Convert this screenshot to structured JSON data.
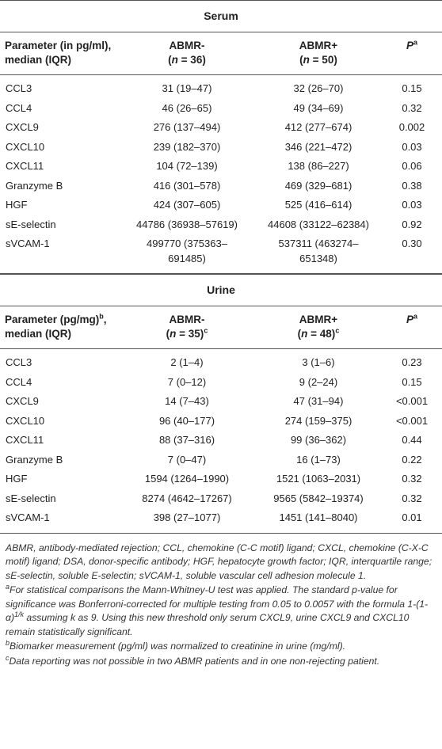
{
  "sections": [
    {
      "title": "Serum",
      "header": [
        [
          [
            {
              "text": "Parameter (in pg/ml),"
            }
          ],
          [
            {
              "text": "median (IQR)"
            }
          ]
        ],
        [
          [
            {
              "text": "ABMR-"
            }
          ],
          [
            {
              "text": "("
            },
            {
              "text": "n",
              "style": "i"
            },
            {
              "text": " = 36)"
            }
          ]
        ],
        [
          [
            {
              "text": "ABMR+"
            }
          ],
          [
            {
              "text": "("
            },
            {
              "text": "n",
              "style": "i"
            },
            {
              "text": " = 50)"
            }
          ]
        ],
        [
          [
            {
              "text": "P",
              "style": "i"
            },
            {
              "text": "a",
              "style": "sup"
            }
          ]
        ]
      ],
      "rows": [
        [
          "CCL3",
          "31 (19–47)",
          "32 (26–70)",
          "0.15"
        ],
        [
          "CCL4",
          "46 (26–65)",
          "49 (34–69)",
          "0.32"
        ],
        [
          "CXCL9",
          "276 (137–494)",
          "412 (277–674)",
          "0.002"
        ],
        [
          "CXCL10",
          "239 (182–370)",
          "346 (221–472)",
          "0.03"
        ],
        [
          "CXCL11",
          "104 (72–139)",
          "138 (86–227)",
          "0.06"
        ],
        [
          "Granzyme B",
          "416 (301–578)",
          "469 (329–681)",
          "0.38"
        ],
        [
          "HGF",
          "424 (307–605)",
          "525 (416–614)",
          "0.03"
        ],
        [
          "sE-selectin",
          "44786 (36938–57619)",
          "44608 (33122–62384)",
          "0.92"
        ],
        [
          "sVCAM-1",
          "499770 (375363–691485)",
          "537311 (463274–651348)",
          "0.30"
        ]
      ]
    },
    {
      "title": "Urine",
      "header": [
        [
          [
            {
              "text": "Parameter (pg/mg)"
            },
            {
              "text": "b",
              "style": "sup"
            },
            {
              "text": ","
            }
          ],
          [
            {
              "text": "median (IQR)"
            }
          ]
        ],
        [
          [
            {
              "text": "ABMR-"
            }
          ],
          [
            {
              "text": "("
            },
            {
              "text": "n",
              "style": "i"
            },
            {
              "text": " = 35)"
            },
            {
              "text": "c",
              "style": "sup"
            }
          ]
        ],
        [
          [
            {
              "text": "ABMR+"
            }
          ],
          [
            {
              "text": "("
            },
            {
              "text": "n",
              "style": "i"
            },
            {
              "text": " = 48)"
            },
            {
              "text": "c",
              "style": "sup"
            }
          ]
        ],
        [
          [
            {
              "text": "P",
              "style": "i"
            },
            {
              "text": "a",
              "style": "sup"
            }
          ]
        ]
      ],
      "rows": [
        [
          "CCL3",
          "2 (1–4)",
          "3 (1–6)",
          "0.23"
        ],
        [
          "CCL4",
          "7 (0–12)",
          "9 (2–24)",
          "0.15"
        ],
        [
          "CXCL9",
          "14 (7–43)",
          "47 (31–94)",
          "<0.001"
        ],
        [
          "CXCL10",
          "96 (40–177)",
          "274 (159–375)",
          "<0.001"
        ],
        [
          "CXCL11",
          "88 (37–316)",
          "99 (36–362)",
          "0.44"
        ],
        [
          "Granzyme B",
          "7 (0–47)",
          "16 (1–73)",
          "0.22"
        ],
        [
          "HGF",
          "1594 (1264–1990)",
          "1521 (1063–2031)",
          "0.32"
        ],
        [
          "sE-selectin",
          "8274 (4642–17267)",
          "9565 (5842–19374)",
          "0.32"
        ],
        [
          "sVCAM-1",
          "398 (27–1077)",
          "1451 (141–8040)",
          "0.01"
        ]
      ]
    }
  ],
  "footnotes": [
    [
      {
        "text": "ABMR, antibody-mediated rejection; CCL, chemokine (C-C motif) ligand; CXCL, chemokine (C-X-C motif) ligand; DSA, donor-specific antibody; HGF, hepatocyte growth factor; IQR, interquartile range; sE-selectin, soluble E-selectin; sVCAM-1, soluble vascular cell adhesion molecule 1."
      }
    ],
    [
      {
        "text": "a",
        "style": "sup"
      },
      {
        "text": "For statistical comparisons the Mann-Whitney-U test was applied. The standard p-value for significance was Bonferroni-corrected for multiple testing from 0.05 to 0.0057 with the formula 1-(1-α)"
      },
      {
        "text": "1/k",
        "style": "sup"
      },
      {
        "text": " assuming k as 9. Using this new threshold only serum CXCL9, urine CXCL9 and CXCL10 remain statistically significant."
      }
    ],
    [
      {
        "text": "b",
        "style": "sup"
      },
      {
        "text": "Biomarker measurement (pg/ml) was normalized to creatinine in urine (mg/ml)."
      }
    ],
    [
      {
        "text": "c",
        "style": "sup"
      },
      {
        "text": "Data reporting was not possible in two ABMR patients and in one non-rejecting patient."
      }
    ]
  ]
}
